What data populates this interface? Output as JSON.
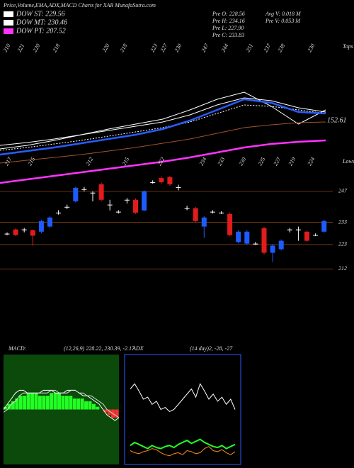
{
  "header": {
    "title": "Price,Volume,EMA,ADX,MACD Charts for XAR MunafaSutra.com"
  },
  "info": [
    "Pre O: 228.56",
    "Pre H: 234.16",
    "Pre L: 227.90",
    "Pre C: 233.83",
    "Avg V: 0.018 M",
    "Pre V: 0.053 M"
  ],
  "chart_data": [
    {
      "type": "line",
      "ylim": [
        0,
        130
      ],
      "end_value": 152.61,
      "tops": {
        "label": "Tops",
        "values": [
          210,
          221,
          220,
          218,
          220,
          218,
          223,
          227,
          230,
          247,
          244,
          251,
          237,
          238,
          230
        ]
      },
      "lows": {
        "label": "Lows",
        "values": [
          217,
          215,
          212,
          215,
          222,
          234,
          233,
          230,
          225,
          227,
          219,
          224
        ]
      },
      "series": [
        {
          "name": "DOW ST: 229.56",
          "color": "#ffffff",
          "style": "solid",
          "values": [
            55,
            59,
            64,
            70,
            76,
            82,
            88,
            98,
            112,
            122,
            118,
            108,
            102
          ]
        },
        {
          "name": "DOW MT: 230.46",
          "color": "#ffffff",
          "style": "dotted",
          "values": [
            48,
            52,
            57,
            62,
            68,
            74,
            80,
            88,
            100,
            112,
            110,
            105,
            100
          ]
        },
        {
          "name": "DOW PT: 207.52",
          "color": "#ff33ff",
          "style": "thick",
          "values": [
            2,
            7,
            12,
            17,
            22,
            27,
            32,
            38,
            45,
            52,
            57,
            60,
            62
          ]
        },
        {
          "color": "#ffffff",
          "style": "jagged",
          "values": [
            50,
            55,
            62,
            70,
            78,
            85,
            92,
            105,
            120,
            130,
            110,
            85,
            105
          ]
        },
        {
          "color": "#2a5cff",
          "style": "thick",
          "values": [
            42,
            47,
            52,
            58,
            64,
            70,
            78,
            90,
            105,
            120,
            115,
            102,
            100
          ]
        },
        {
          "color": "#a0522d",
          "style": "solid",
          "values": [
            30,
            34,
            38,
            42,
            47,
            52,
            58,
            64,
            72,
            80,
            84,
            87,
            88
          ]
        }
      ]
    },
    {
      "type": "candlestick",
      "ylim": [
        206,
        254
      ],
      "yticks": [
        247,
        233,
        223,
        212
      ],
      "grid": true,
      "up_color": "#1e5bff",
      "down_color": "#e21b1b",
      "flat_color": "#ffffff",
      "open": [
        227.9,
        229.8,
        229.8,
        229.5,
        228.8,
        231.1,
        237.4,
        240.0,
        242.5,
        248.0,
        246.4,
        250.2,
        241.0,
        237.8,
        243.2,
        243.2,
        238.4,
        251.1,
        253.0,
        253.4,
        248.9,
        239.4,
        239.4,
        231.1,
        237.8,
        237.4,
        236.8,
        224.1,
        223.4,
        223.4,
        230.4,
        219.3,
        220.9,
        229.8,
        229.8,
        228.8,
        227.3,
        228.8
      ],
      "high": [
        228.5,
        230.3,
        230.5,
        229.8,
        234.2,
        235.8,
        238.5,
        241.0,
        249.0,
        249.0,
        247.0,
        251.0,
        243.2,
        238.5,
        244.0,
        243.8,
        247.5,
        252.0,
        253.8,
        254.0,
        250.0,
        240.5,
        240.0,
        235.8,
        238.5,
        238.0,
        237.4,
        229.5,
        229.5,
        224.2,
        231.0,
        223.2,
        225.3,
        230.5,
        231.1,
        229.3,
        228.0,
        234.2
      ],
      "low": [
        227.2,
        226.8,
        228.5,
        222.5,
        228.0,
        230.5,
        236.5,
        239.0,
        242.0,
        247.0,
        242.5,
        242.5,
        238.4,
        237.0,
        241.5,
        236.8,
        238.0,
        250.5,
        250.5,
        249.5,
        247.5,
        238.5,
        233.0,
        226.0,
        237.0,
        236.8,
        226.8,
        223.5,
        222.8,
        222.8,
        218.5,
        215.2,
        220.3,
        228.5,
        224.7,
        224.2,
        226.8,
        228.4
      ],
      "close": [
        227.9,
        227.3,
        229.8,
        227.0,
        233.6,
        235.2,
        237.4,
        240.0,
        248.6,
        248.0,
        246.4,
        243.2,
        241.0,
        237.8,
        243.2,
        237.4,
        247.0,
        251.1,
        251.1,
        250.2,
        248.9,
        239.4,
        233.6,
        235.2,
        237.8,
        237.4,
        227.3,
        228.8,
        228.8,
        223.4,
        219.3,
        222.5,
        224.7,
        229.8,
        229.8,
        224.7,
        227.3,
        233.6
      ]
    },
    {
      "type": "macd",
      "title": "MACD:",
      "subtitle": "(12,26,9) 228.22, 230.39, -2.17",
      "ylim": [
        -20,
        20
      ],
      "background": "#0b4a0b",
      "pos_color": "#22ff22",
      "neg_color": "#ff3030",
      "histogram": [
        1,
        2,
        3,
        4,
        5,
        5,
        6,
        6,
        6,
        5,
        5,
        5,
        6,
        6,
        6,
        5,
        5,
        5,
        4,
        4,
        4,
        3,
        3,
        2,
        1,
        0,
        -1,
        -2,
        -3,
        -3
      ],
      "series": [
        {
          "color": "#ffffff",
          "values": [
            0,
            2,
            4,
            6,
            7,
            7,
            6,
            6,
            6,
            6,
            7,
            7,
            7,
            6,
            6,
            6,
            7,
            7,
            7,
            6,
            5,
            5,
            4,
            3,
            2,
            0,
            -2,
            -3,
            -4,
            -3
          ]
        },
        {
          "color": "#dddddd",
          "values": [
            -1,
            0,
            2,
            3,
            5,
            6,
            6,
            6,
            6,
            6,
            6,
            6,
            7,
            7,
            6,
            6,
            6,
            7,
            7,
            6,
            6,
            5,
            5,
            4,
            3,
            2,
            0,
            -1,
            -2,
            -3
          ]
        }
      ]
    },
    {
      "type": "adx",
      "title": "ADX",
      "subtitle": "(14 day)2, -28, -27",
      "ylim": [
        0,
        100
      ],
      "border": "#2a5cff",
      "series": [
        {
          "color": "#ffffff",
          "values": [
            70,
            75,
            68,
            60,
            62,
            55,
            58,
            50,
            52,
            48,
            50,
            55,
            60,
            65,
            70,
            62,
            75,
            68,
            60,
            65,
            58,
            62,
            55,
            60,
            50
          ]
        },
        {
          "color": "#22ff22",
          "values": [
            15,
            18,
            16,
            14,
            12,
            15,
            13,
            12,
            14,
            15,
            13,
            16,
            18,
            20,
            17,
            19,
            21,
            18,
            16,
            14,
            13,
            15,
            12,
            14,
            16
          ]
        },
        {
          "color": "#ff8c1a",
          "values": [
            10,
            8,
            7,
            9,
            10,
            12,
            11,
            8,
            6,
            5,
            7,
            8,
            6,
            10,
            9,
            7,
            8,
            12,
            14,
            10,
            9,
            11,
            8,
            6,
            9
          ]
        }
      ]
    }
  ]
}
